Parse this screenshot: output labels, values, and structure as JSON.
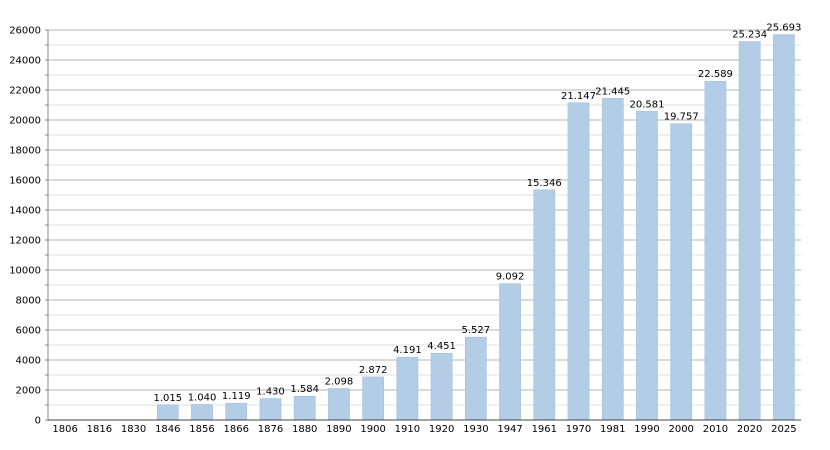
{
  "chart_data": {
    "type": "bar",
    "categories": [
      "1806",
      "1816",
      "1830",
      "1846",
      "1856",
      "1866",
      "1876",
      "1880",
      "1890",
      "1900",
      "1910",
      "1920",
      "1930",
      "1947",
      "1961",
      "1970",
      "1981",
      "1990",
      "2000",
      "2010",
      "2020",
      "2025"
    ],
    "values": [
      0,
      0,
      0,
      1015,
      1040,
      1119,
      1430,
      1584,
      2098,
      2872,
      4191,
      4451,
      5527,
      9092,
      15346,
      21147,
      21445,
      20581,
      19757,
      22589,
      25234,
      25693
    ],
    "data_labels": [
      "",
      "",
      "",
      "1.015",
      "1.040",
      "1.119",
      "1.430",
      "1.584",
      "2.098",
      "2.872",
      "4.191",
      "4.451",
      "5.527",
      "9.092",
      "15.346",
      "21.147",
      "21.445",
      "20.581",
      "19.757",
      "22.589",
      "25.234",
      "25.693"
    ],
    "y_ticks": [
      0,
      2000,
      4000,
      6000,
      8000,
      10000,
      12000,
      14000,
      16000,
      18000,
      20000,
      22000,
      24000,
      26000
    ],
    "ylim": [
      0,
      26000
    ],
    "grid": true,
    "bar_color": "#b3cde6",
    "title": "",
    "xlabel": "",
    "ylabel": ""
  }
}
